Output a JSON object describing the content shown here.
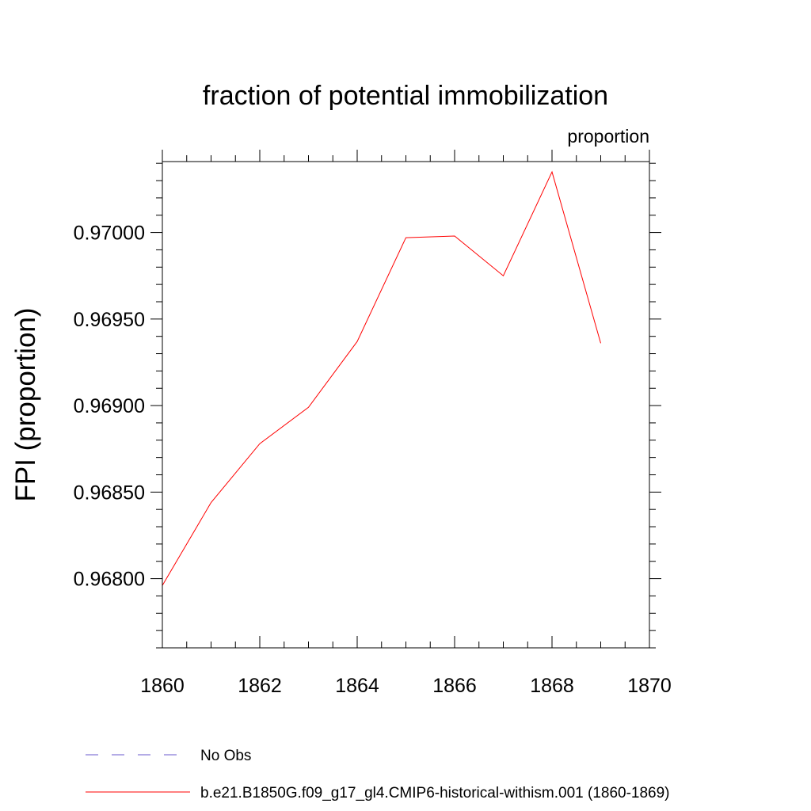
{
  "chart_data": {
    "type": "line",
    "title": "fraction of potential immobilization",
    "units_label": "proportion",
    "xlabel": "",
    "ylabel": "FPI  (proportion)",
    "xlim": [
      1860,
      1870
    ],
    "ylim": [
      0.9676,
      0.97041
    ],
    "x_ticks": [
      1860,
      1862,
      1864,
      1866,
      1868,
      1870
    ],
    "x_tick_labels": [
      "1860",
      "1862",
      "1864",
      "1866",
      "1868",
      "1870"
    ],
    "y_ticks": [
      0.968,
      0.9685,
      0.969,
      0.9695,
      0.97
    ],
    "y_tick_labels": [
      "0.96800",
      "0.96850",
      "0.96900",
      "0.96950",
      "0.97000"
    ],
    "x": [
      1860,
      1861,
      1862,
      1863,
      1864,
      1865,
      1866,
      1867,
      1868,
      1869
    ],
    "series": [
      {
        "name": "b.e21.B1850G.f09_g17_gl4.CMIP6-historical-withism.001 (1860-1869)",
        "color": "#ff0000",
        "values": [
          0.96796,
          0.96844,
          0.96878,
          0.96899,
          0.96937,
          0.96997,
          0.96998,
          0.96975,
          0.97035,
          0.96936
        ]
      }
    ],
    "legend": {
      "position": "bottom-left",
      "entries": [
        {
          "label": "No Obs",
          "color": "#6a5acd",
          "style": "dashed"
        },
        {
          "label": "b.e21.B1850G.f09_g17_gl4.CMIP6-historical-withism.001 (1860-1869)",
          "color": "#ff0000",
          "style": "solid"
        }
      ]
    },
    "grid": false
  }
}
